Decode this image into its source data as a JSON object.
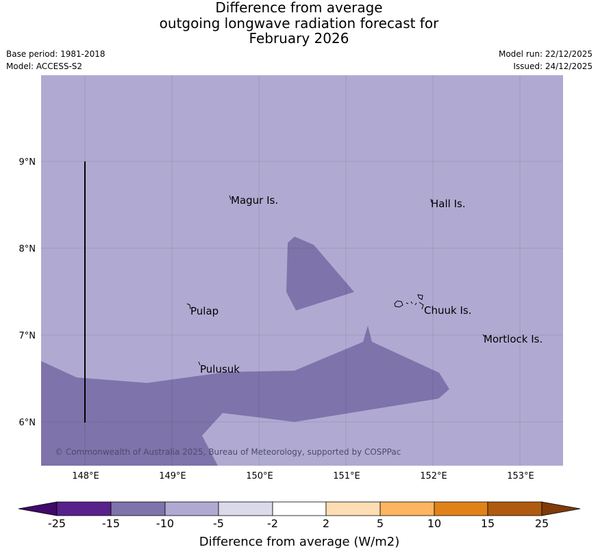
{
  "header": {
    "title_lines": [
      "Difference from average",
      "outgoing longwave radiation forecast for",
      "February 2026"
    ],
    "base_period": "Base period: 1981-2018",
    "model": "Model: ACCESS-S2",
    "model_run": "Model run: 22/12/2025",
    "issued": "Issued: 24/12/2025"
  },
  "map": {
    "lat_labels": [
      "9°N",
      "8°N",
      "7°N",
      "6°N"
    ],
    "lon_labels": [
      "148°E",
      "149°E",
      "150°E",
      "151°E",
      "152°E",
      "153°E"
    ],
    "places": [
      "Magur Is.",
      "Hall Is.",
      "Pulap",
      "Chuuk Is.",
      "Mortlock Is.",
      "Pulusuk"
    ],
    "copyright": "© Commonwealth of Australia 2025, Bureau of Meteorology, supported by COSPPac",
    "colors": {
      "background_fill": "#b0aad2",
      "anomaly_fill": "#7f73ab"
    }
  },
  "colorbar": {
    "ticks": [
      "-25",
      "-15",
      "-10",
      "-5",
      "-2",
      "2",
      "5",
      "10",
      "15",
      "25"
    ],
    "colors": [
      "#3f0a6a",
      "#57228b",
      "#7f73ab",
      "#b0aad2",
      "#dadaeb",
      "#ffffff",
      "#fdddb3",
      "#fdb55f",
      "#e18219",
      "#b05a0f",
      "#7f3b08"
    ],
    "label": "Difference from average (W/m2)"
  }
}
